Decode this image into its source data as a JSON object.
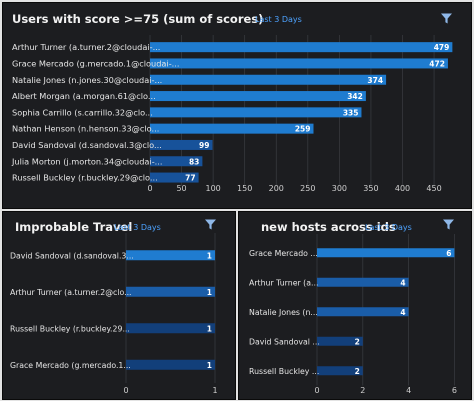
{
  "colors": {
    "bar_top": "#1f7cd0",
    "bar_bottom_dark": "#123f7a",
    "axis_text": "#cfcfcf",
    "label_text": "#e6e6e6",
    "grid": "#3b3d42",
    "accent": "#4da3ff"
  },
  "icons": {
    "filter": "filter-icon"
  },
  "panels": {
    "top": {
      "title": "Users with score >=75 (sum of scores)",
      "subtitle": "Last 3 Days"
    },
    "bottom_left": {
      "title": "Improbable Travel",
      "subtitle": "Last 3 Days"
    },
    "bottom_right": {
      "title": "new hosts across ids",
      "subtitle": "Last 3 Days"
    }
  },
  "chart_data": [
    {
      "type": "bar",
      "orientation": "horizontal",
      "title": "Users with score >=75 (sum of scores)",
      "subtitle": "Last 3 Days",
      "categories": [
        "Arthur Turner (a.turner.2@cloudai-...",
        "Grace Mercado (g.mercado.1@cloudai-...",
        "Natalie Jones (n.jones.30@cloudai-...",
        "Albert Morgan (a.morgan.61@clo...",
        "Sophia Carrillo (s.carrillo.32@clo...",
        "Nathan Henson (n.henson.33@clo...",
        "David Sandoval (d.sandoval.3@clo...",
        "Julia Morton (j.morton.34@cloudai-...",
        "Russell Buckley (r.buckley.29@clo..."
      ],
      "values": [
        479,
        472,
        374,
        342,
        335,
        259,
        99,
        83,
        77
      ],
      "data_labels": [
        "479",
        "472",
        "374",
        "342",
        "335",
        "259",
        "99",
        "83",
        "77"
      ],
      "xlim": [
        0,
        480
      ],
      "xticks": [
        "0",
        "50",
        "100",
        "150",
        "200",
        "250",
        "300",
        "350",
        "400",
        "450"
      ],
      "grid": true
    },
    {
      "type": "bar",
      "orientation": "horizontal",
      "title": "Improbable Travel",
      "subtitle": "Last 3 Days",
      "categories": [
        "David Sandoval (d.sandoval.3...",
        "Arthur Turner (a.turner.2@clo...",
        "Russell Buckley (r.buckley.29...",
        "Grace Mercado (g.mercado.1..."
      ],
      "values": [
        1,
        1,
        1,
        1
      ],
      "data_labels": [
        "1",
        "1",
        "1",
        "1"
      ],
      "xlim": [
        0,
        1
      ],
      "xticks": [
        "0",
        "1"
      ],
      "grid": true
    },
    {
      "type": "bar",
      "orientation": "horizontal",
      "title": "new hosts across ids",
      "subtitle": "Last 3 Days",
      "categories": [
        "Grace Mercado ...",
        "Arthur Turner (a...",
        "Natalie Jones (n...",
        "David Sandoval ...",
        "Russell Buckley ..."
      ],
      "values": [
        6,
        4,
        4,
        2,
        2
      ],
      "data_labels": [
        "6",
        "4",
        "4",
        "2",
        "2"
      ],
      "xlim": [
        0,
        6.2
      ],
      "xticks": [
        "0",
        "2",
        "4",
        "6"
      ],
      "xtick_values": [
        0,
        2,
        4,
        6
      ],
      "grid": true
    }
  ]
}
